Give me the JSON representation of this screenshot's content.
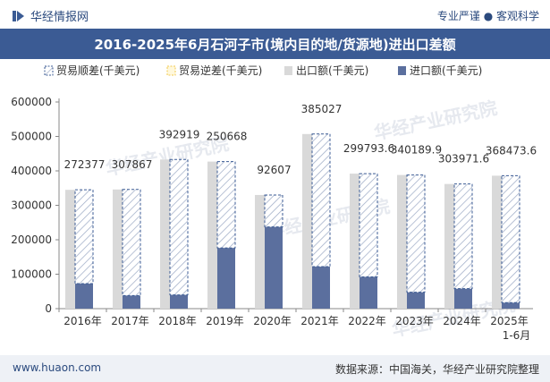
{
  "header": {
    "brand": "华经情报网",
    "tags": "专业严谨 ● 客观科学"
  },
  "title": "2016-2025年6月石河子市(境内目的地/货源地)进出口差额",
  "footer": {
    "website": "www.huaon.com",
    "source": "数据来源：中国海关，华经产业研究院整理"
  },
  "watermark": "华经产业研究院",
  "chart_data": {
    "type": "bar",
    "categories": [
      "2016年",
      "2017年",
      "2018年",
      "2019年",
      "2020年",
      "2021年",
      "2022年",
      "2023年",
      "2024年",
      "2025年\n1-6月"
    ],
    "legend": [
      "贸易顺差(千美元)",
      "贸易逆差(千美元)",
      "出口额(千美元)",
      "进口额(千美元)"
    ],
    "series": [
      {
        "name": "贸易顺差(千美元)",
        "values": [
          272377,
          307867,
          392919,
          250668,
          92607,
          385027,
          299793.6,
          340189.9,
          303971.6,
          368473.6
        ],
        "color": "#3b5b94"
      },
      {
        "name": "贸易逆差(千美元)",
        "values": [
          0,
          0,
          0,
          0,
          0,
          0,
          0,
          0,
          0,
          0
        ],
        "color": "#f2c94c"
      },
      {
        "name": "出口额(千美元)",
        "values": [
          345000,
          346000,
          433000,
          427000,
          330000,
          507000,
          392000,
          388000,
          362000,
          386000
        ],
        "color": "#d9d9d9"
      },
      {
        "name": "进口额(千美元)",
        "values": [
          72623,
          38133,
          40081,
          176332,
          237393,
          121973,
          92206,
          47810,
          58028,
          17526
        ],
        "color": "#5b6f9e"
      }
    ],
    "data_labels": [
      "272377",
      "307867",
      "392919",
      "250668",
      "92607",
      "385027",
      "299793.6",
      "340189.9",
      "303971.6",
      "368473.6"
    ],
    "ylim": [
      0,
      600000
    ],
    "yticks": [
      "0",
      "100000",
      "200000",
      "300000",
      "400000",
      "500000",
      "600000"
    ],
    "grid": false,
    "legend_position": "top-left"
  }
}
